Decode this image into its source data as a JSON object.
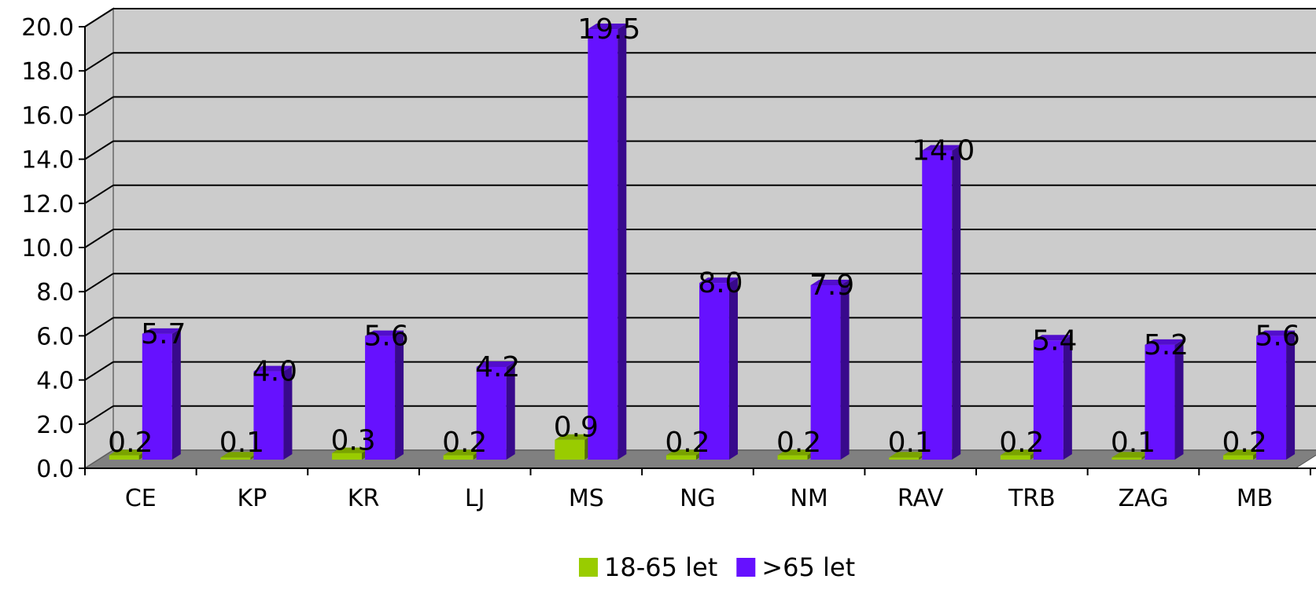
{
  "chart_data": {
    "type": "bar",
    "categories": [
      "CE",
      "KP",
      "KR",
      "LJ",
      "MS",
      "NG",
      "NM",
      "RAV",
      "TRB",
      "ZAG",
      "MB"
    ],
    "series": [
      {
        "name": "18-65 let",
        "color": "#99cc00",
        "values": [
          0.2,
          0.1,
          0.3,
          0.2,
          0.9,
          0.2,
          0.2,
          0.1,
          0.2,
          0.1,
          0.2
        ]
      },
      {
        "name": ">65 let",
        "color": "#6611ff",
        "values": [
          5.7,
          4.0,
          5.6,
          4.2,
          19.5,
          8.0,
          7.9,
          14.0,
          5.4,
          5.2,
          5.6
        ]
      }
    ],
    "data_labels": [
      [
        "0.2",
        "0.1",
        "0.3",
        "0.2",
        "0.9",
        "0.2",
        "0.2",
        "0.1",
        "0.2",
        "0.1",
        "0.2"
      ],
      [
        "5.7",
        "4.0",
        "5.6",
        "4.2",
        "19.5",
        "8.0",
        "7.9",
        "14.0",
        "5.4",
        "5.2",
        "5.6"
      ]
    ],
    "y_ticks": [
      "0.0",
      "2.0",
      "4.0",
      "6.0",
      "8.0",
      "10.0",
      "12.0",
      "14.0",
      "16.0",
      "18.0",
      "20.0"
    ],
    "ylim": [
      0,
      20
    ],
    "grid": true,
    "legend_position": "bottom",
    "style": "3d-column",
    "wall_color": "#cccccc",
    "floor_color": "#808080"
  }
}
